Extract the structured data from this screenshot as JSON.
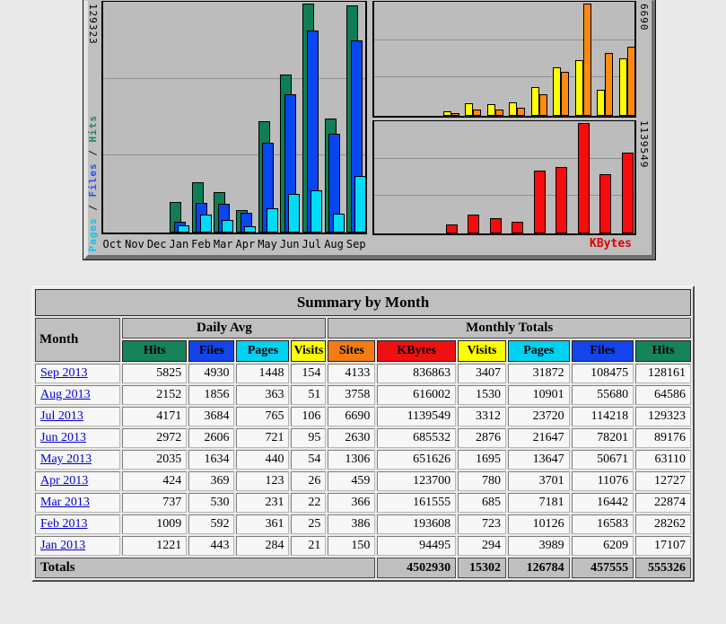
{
  "graph": {
    "left_axis_max_label": "129323",
    "right_axis_top_max_label": "6690",
    "right_axis_bottom_max_label": "1139549",
    "kbytes_axis_label": "KBytes",
    "left_legend": [
      {
        "text": "Pages",
        "color": "#00ccee"
      },
      {
        "text": " / ",
        "color": "#111111"
      },
      {
        "text": "Files",
        "color": "#2b50f5"
      },
      {
        "text": " / ",
        "color": "#111111"
      },
      {
        "text": "Hits",
        "color": "#1b8a5e"
      }
    ]
  },
  "chart_data": [
    {
      "type": "bar",
      "title": "Pages / Files / Hits by month",
      "categories": [
        "Oct",
        "Nov",
        "Dec",
        "Jan",
        "Feb",
        "Mar",
        "Apr",
        "May",
        "Jun",
        "Jul",
        "Aug",
        "Sep"
      ],
      "series": [
        {
          "name": "Hits",
          "color": "#0f7e54",
          "values": [
            0,
            0,
            0,
            17107,
            28262,
            22874,
            12727,
            63110,
            89176,
            129323,
            64586,
            128161
          ]
        },
        {
          "name": "Files",
          "color": "#0846f0",
          "values": [
            0,
            0,
            0,
            6209,
            16583,
            16442,
            11076,
            50671,
            78201,
            114218,
            55680,
            108475
          ]
        },
        {
          "name": "Pages",
          "color": "#00dcf8",
          "values": [
            0,
            0,
            0,
            3989,
            10126,
            7181,
            3701,
            13647,
            21647,
            23720,
            10901,
            31872
          ]
        }
      ],
      "ylim": [
        0,
        129323
      ],
      "axis_max_label": "129323",
      "grid": true,
      "legend_position": "left"
    },
    {
      "type": "bar",
      "title": "Visits / Sites by month",
      "categories": [
        "Oct",
        "Nov",
        "Dec",
        "Jan",
        "Feb",
        "Mar",
        "Apr",
        "May",
        "Jun",
        "Jul",
        "Aug",
        "Sep"
      ],
      "series": [
        {
          "name": "Visits",
          "color": "#ffff00",
          "values": [
            0,
            0,
            0,
            294,
            723,
            685,
            780,
            1695,
            2876,
            3312,
            1530,
            3407
          ]
        },
        {
          "name": "Sites",
          "color": "#ff8a10",
          "values": [
            0,
            0,
            0,
            150,
            386,
            366,
            459,
            1306,
            2630,
            6690,
            3758,
            4133
          ]
        }
      ],
      "ylim": [
        0,
        6690
      ],
      "axis_max_label": "6690",
      "grid": true
    },
    {
      "type": "bar",
      "title": "KBytes by month",
      "categories": [
        "Oct",
        "Nov",
        "Dec",
        "Jan",
        "Feb",
        "Mar",
        "Apr",
        "May",
        "Jun",
        "Jul",
        "Aug",
        "Sep"
      ],
      "series": [
        {
          "name": "KBytes",
          "color": "#f60c0c",
          "values": [
            0,
            0,
            0,
            94495,
            193608,
            161555,
            123700,
            651626,
            685532,
            1139549,
            616002,
            836863
          ]
        }
      ],
      "ylim": [
        0,
        1139549
      ],
      "axis_max_label": "1139549",
      "grid": true
    }
  ],
  "table": {
    "title": "Summary by Month",
    "month_header": "Month",
    "groups": [
      {
        "label": "Daily Avg",
        "span": 4
      },
      {
        "label": "Monthly Totals",
        "span": 6
      }
    ],
    "columns": [
      {
        "label": "Hits",
        "color": "#17835a"
      },
      {
        "label": "Files",
        "color": "#1344ec"
      },
      {
        "label": "Pages",
        "color": "#00d2f2"
      },
      {
        "label": "Visits",
        "color": "#ffff00"
      },
      {
        "label": "Sites",
        "color": "#f57c15"
      },
      {
        "label": "KBytes",
        "color": "#ef1111"
      },
      {
        "label": "Visits",
        "color": "#ffff00"
      },
      {
        "label": "Pages",
        "color": "#00d2f2"
      },
      {
        "label": "Files",
        "color": "#1344ec"
      },
      {
        "label": "Hits",
        "color": "#17835a"
      }
    ],
    "rows": [
      {
        "month": "Sep 2013",
        "values": [
          5825,
          4930,
          1448,
          154,
          4133,
          836863,
          3407,
          31872,
          108475,
          128161
        ]
      },
      {
        "month": "Aug 2013",
        "values": [
          2152,
          1856,
          363,
          51,
          3758,
          616002,
          1530,
          10901,
          55680,
          64586
        ]
      },
      {
        "month": "Jul 2013",
        "values": [
          4171,
          3684,
          765,
          106,
          6690,
          1139549,
          3312,
          23720,
          114218,
          129323
        ]
      },
      {
        "month": "Jun 2013",
        "values": [
          2972,
          2606,
          721,
          95,
          2630,
          685532,
          2876,
          21647,
          78201,
          89176
        ]
      },
      {
        "month": "May 2013",
        "values": [
          2035,
          1634,
          440,
          54,
          1306,
          651626,
          1695,
          13647,
          50671,
          63110
        ]
      },
      {
        "month": "Apr 2013",
        "values": [
          424,
          369,
          123,
          26,
          459,
          123700,
          780,
          3701,
          11076,
          12727
        ]
      },
      {
        "month": "Mar 2013",
        "values": [
          737,
          530,
          231,
          22,
          366,
          161555,
          685,
          7181,
          16442,
          22874
        ]
      },
      {
        "month": "Feb 2013",
        "values": [
          1009,
          592,
          361,
          25,
          386,
          193608,
          723,
          10126,
          16583,
          28262
        ]
      },
      {
        "month": "Jan 2013",
        "values": [
          1221,
          443,
          284,
          21,
          150,
          94495,
          294,
          3989,
          6209,
          17107
        ]
      }
    ],
    "totals": {
      "label": "Totals",
      "values": [
        4502930,
        15302,
        126784,
        457555,
        555326
      ]
    }
  }
}
